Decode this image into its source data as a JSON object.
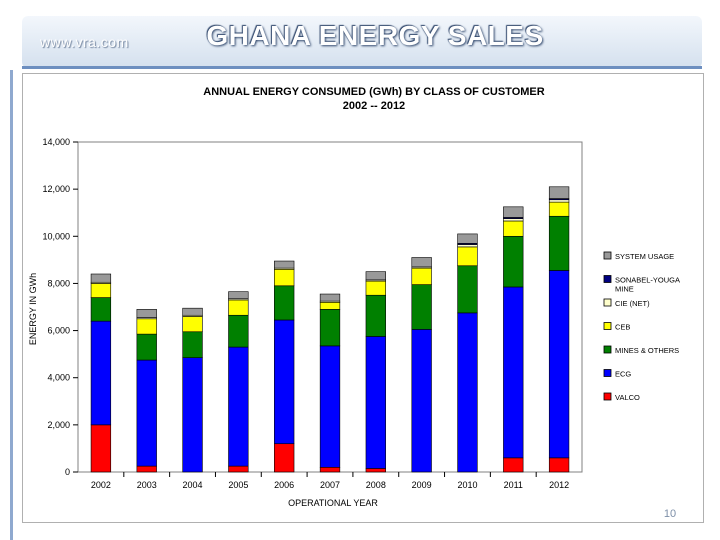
{
  "header": {
    "site": "www.vra.com",
    "title": "GHANA ENERGY SALES",
    "page_number": "10"
  },
  "chart_data": {
    "type": "stacked-bar",
    "title": "ANNUAL ENERGY CONSUMED (GWh) BY CLASS OF CUSTOMER",
    "subtitle": "2002 -- 2012",
    "xlabel": "OPERATIONAL YEAR",
    "ylabel": "ENERGY IN GWh",
    "ylim": [
      0,
      14000
    ],
    "yticks": [
      0,
      2000,
      4000,
      6000,
      8000,
      10000,
      12000,
      14000
    ],
    "ytick_labels": [
      "0",
      "2,000",
      "4,000",
      "6,000",
      "8,000",
      "10,000",
      "12,000",
      "14,000"
    ],
    "grid": false,
    "categories": [
      "2002",
      "2003",
      "2004",
      "2005",
      "2006",
      "2007",
      "2008",
      "2009",
      "2010",
      "2011",
      "2012"
    ],
    "series": [
      {
        "name": "VALCO",
        "color": "#ff0000",
        "values": [
          2000,
          250,
          0,
          250,
          1200,
          200,
          150,
          0,
          0,
          600,
          600
        ]
      },
      {
        "name": "ECG",
        "color": "#0000ff",
        "values": [
          4400,
          4500,
          4850,
          5050,
          5250,
          5150,
          5600,
          6050,
          6750,
          7250,
          7950
        ]
      },
      {
        "name": "MINES & OTHERS",
        "color": "#008000",
        "values": [
          1000,
          1100,
          1100,
          1350,
          1450,
          1550,
          1750,
          1900,
          2000,
          2150,
          2300
        ]
      },
      {
        "name": "CEB",
        "color": "#ffff00",
        "values": [
          600,
          650,
          650,
          650,
          700,
          300,
          600,
          700,
          800,
          650,
          600
        ]
      },
      {
        "name": "CIE (NET)",
        "color": "#ffffcc",
        "values": [
          50,
          50,
          50,
          50,
          50,
          50,
          50,
          50,
          100,
          100,
          100
        ]
      },
      {
        "name": "SONABEL-YOUGA MINE",
        "color": "#000080",
        "values": [
          0,
          0,
          0,
          0,
          0,
          0,
          0,
          0,
          50,
          50,
          50
        ]
      },
      {
        "name": "SYSTEM USAGE",
        "color": "#999999",
        "values": [
          350,
          350,
          300,
          300,
          300,
          300,
          350,
          400,
          400,
          450,
          500
        ]
      }
    ],
    "legend_order": [
      "SYSTEM USAGE",
      "SONABEL-YOUGA MINE",
      "CIE (NET)",
      "CEB",
      "MINES & OTHERS",
      "ECG",
      "VALCO"
    ],
    "legend_labels": [
      "SYSTEM USAGE",
      "SONABEL-YOUGA MINE",
      "CIE (NET)",
      "CEB",
      "MINES & OTHERS",
      "ECG",
      "VALCO"
    ],
    "legend_position": "right"
  }
}
